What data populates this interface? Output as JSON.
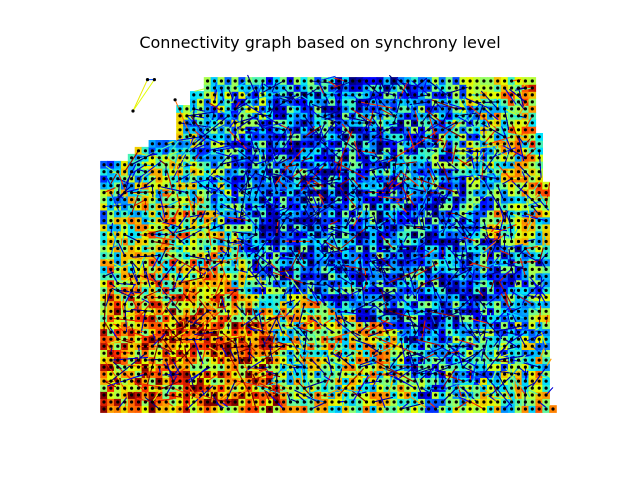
{
  "chart_data": {
    "type": "scatter",
    "subtype": "connectivity-graph",
    "title": "Connectivity graph based on synchrony level",
    "xlabel": "",
    "ylabel": "",
    "axes_visible": false,
    "grid": false,
    "legend": "none",
    "node_color": "#000000",
    "edge_colormap": "jet",
    "colormap_stops": [
      "#00007f",
      "#0000ff",
      "#007fff",
      "#00e5ff",
      "#7fff7f",
      "#e5ff00",
      "#ff9900",
      "#ff2a00",
      "#7f0000"
    ],
    "grid_nodes": {
      "columns": 66,
      "rows": 49,
      "x_range": [
        0,
        65
      ],
      "y_range": [
        0,
        48
      ],
      "region_boundary": [
        [
          0,
          0
        ],
        [
          65,
          0
        ],
        [
          65,
          33
        ],
        [
          64,
          33
        ],
        [
          64,
          40
        ],
        [
          63,
          40
        ],
        [
          63,
          48
        ],
        [
          15,
          48
        ],
        [
          15,
          46
        ],
        [
          13,
          46
        ],
        [
          13,
          44
        ],
        [
          11,
          44
        ],
        [
          11,
          39
        ],
        [
          8,
          39
        ],
        [
          3,
          36
        ],
        [
          2,
          36
        ],
        [
          0,
          35
        ]
      ]
    },
    "outlier_nodes": [
      {
        "x": 6.3,
        "y": 47.2
      },
      {
        "x": 7.3,
        "y": 47.2
      },
      {
        "x": 4.2,
        "y": 42.7
      },
      {
        "x": 10.3,
        "y": 44.3
      },
      {
        "x": 12.5,
        "y": 39.2
      }
    ],
    "outlier_edges": [
      {
        "from": 0,
        "to": 2,
        "level": 0.65
      },
      {
        "from": 1,
        "to": 2,
        "level": 0.62
      },
      {
        "from": 0,
        "to": 1,
        "level": 0.2
      },
      {
        "from": 3,
        "to": 4,
        "level": 0.8
      }
    ],
    "dense_link_clusters": [
      {
        "x": 25,
        "y": 31,
        "level": 0.02
      },
      {
        "x": 40,
        "y": 26,
        "level": 0.05
      },
      {
        "x": 52,
        "y": 42,
        "level": 0.1
      },
      {
        "x": 35,
        "y": 43,
        "level": 0.05
      },
      {
        "x": 12,
        "y": 4,
        "level": 0.9
      },
      {
        "x": 57,
        "y": 10,
        "level": 0.05
      }
    ],
    "colored_regions": [
      {
        "x": 1.5,
        "y": 31,
        "level": 0.3
      },
      {
        "x": 14,
        "y": 45,
        "level": 0.32
      },
      {
        "x": 60,
        "y": 44,
        "level": 0.82
      },
      {
        "x": 62,
        "y": 5,
        "level": 0.7
      },
      {
        "x": 9,
        "y": 26,
        "level": 0.72
      },
      {
        "x": 2,
        "y": 6,
        "level": 0.85
      }
    ]
  }
}
